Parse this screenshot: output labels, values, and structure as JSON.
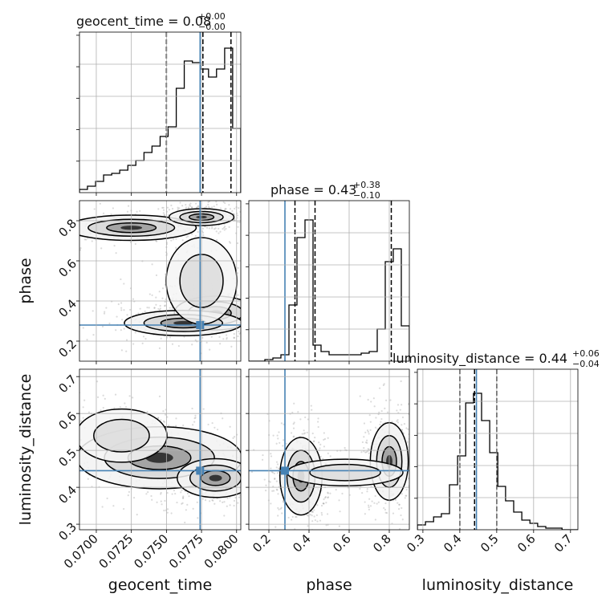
{
  "chart_data": {
    "type": "corner",
    "parameters": [
      "geocent_time",
      "phase",
      "luminosity_distance"
    ],
    "truth": {
      "geocent_time": 0.0774,
      "phase": 0.28,
      "luminosity_distance": 0.445,
      "color": "#4682b4"
    },
    "axes": {
      "geocent_time": {
        "range": [
          0.0688,
          0.0803
        ],
        "ticks": [
          0.07,
          0.0725,
          0.075,
          0.0775,
          0.08
        ],
        "tick_labels": [
          "0.0700",
          "0.0725",
          "0.0750",
          "0.0775",
          "0.0800"
        ]
      },
      "phase": {
        "range": [
          0.1,
          0.9
        ],
        "ticks": [
          0.2,
          0.4,
          0.6,
          0.8
        ],
        "tick_labels": [
          "0.2",
          "0.4",
          "0.6",
          "0.8"
        ]
      },
      "luminosity_distance": {
        "range": [
          0.285,
          0.72
        ],
        "ticks": [
          0.3,
          0.4,
          0.5,
          0.6,
          0.7
        ],
        "tick_labels": [
          "0.3",
          "0.4",
          "0.5",
          "0.6",
          "0.7"
        ]
      }
    },
    "axis_labels": {
      "geocent_time": "geocent_time",
      "phase": "phase",
      "luminosity_distance": "luminosity_distance"
    },
    "titles": {
      "geocent_time": {
        "text": "geocent_time = 0.08",
        "plus": "+0.00",
        "minus": "−0.00"
      },
      "phase": {
        "text": "phase = 0.43",
        "plus": "+0.38",
        "minus": "−0.10"
      },
      "luminosity_distance": {
        "text": "luminosity_distance = 0.44",
        "plus": "+0.06",
        "minus": "−0.04"
      }
    },
    "quantiles": {
      "geocent_time": [
        0.075,
        0.0776,
        0.0796
      ],
      "phase": [
        0.33,
        0.43,
        0.81
      ],
      "luminosity_distance": [
        0.4,
        0.44,
        0.5
      ]
    },
    "histograms": {
      "geocent_time": {
        "edges": [
          0.0688,
          0.06937,
          0.06995,
          0.07052,
          0.0711,
          0.07167,
          0.07225,
          0.07282,
          0.0734,
          0.07397,
          0.07455,
          0.07512,
          0.0757,
          0.07627,
          0.07685,
          0.07742,
          0.078,
          0.07857,
          0.07915,
          0.07972,
          0.0803
        ],
        "counts": [
          0.02,
          0.04,
          0.07,
          0.11,
          0.12,
          0.14,
          0.17,
          0.2,
          0.25,
          0.29,
          0.35,
          0.41,
          0.65,
          0.82,
          0.81,
          0.77,
          0.72,
          0.77,
          0.9,
          0.4
        ]
      },
      "phase": {
        "edges": [
          0.1,
          0.14,
          0.18,
          0.22,
          0.26,
          0.3,
          0.34,
          0.38,
          0.42,
          0.46,
          0.5,
          0.54,
          0.58,
          0.62,
          0.66,
          0.7,
          0.74,
          0.78,
          0.82,
          0.86,
          0.9
        ],
        "counts": [
          0.0,
          0.0,
          0.01,
          0.02,
          0.04,
          0.35,
          0.77,
          0.88,
          0.1,
          0.06,
          0.04,
          0.04,
          0.04,
          0.04,
          0.05,
          0.06,
          0.2,
          0.62,
          0.7,
          0.22
        ]
      },
      "luminosity_distance": {
        "edges": [
          0.285,
          0.307,
          0.329,
          0.35,
          0.372,
          0.394,
          0.416,
          0.437,
          0.459,
          0.481,
          0.503,
          0.524,
          0.546,
          0.568,
          0.59,
          0.611,
          0.633,
          0.655,
          0.677,
          0.698,
          0.72
        ],
        "counts": [
          0.03,
          0.05,
          0.08,
          0.1,
          0.28,
          0.46,
          0.79,
          0.85,
          0.68,
          0.48,
          0.27,
          0.18,
          0.11,
          0.06,
          0.04,
          0.02,
          0.01,
          0.01,
          0.0,
          0.0
        ]
      }
    },
    "densities": {
      "phase_vs_geocent_time": {
        "x": "geocent_time",
        "y": "phase",
        "clusters": [
          {
            "center": [
              0.0725,
              0.765
            ],
            "spread": [
              0.0022,
              0.03
            ],
            "weight": 0.6
          },
          {
            "center": [
              0.0775,
              0.818
            ],
            "spread": [
              0.0011,
              0.02
            ],
            "weight": 0.8
          },
          {
            "center": [
              0.0785,
              0.34
            ],
            "spread": [
              0.0014,
              0.04
            ],
            "weight": 1.0
          },
          {
            "center": [
              0.0762,
              0.29
            ],
            "spread": [
              0.002,
              0.03
            ],
            "weight": 0.5
          },
          {
            "center": [
              0.0775,
              0.5
            ],
            "spread": [
              0.0014,
              0.12
            ],
            "weight": 0.35
          }
        ]
      },
      "luminosity_distance_vs_geocent_time": {
        "x": "geocent_time",
        "y": "luminosity_distance",
        "clusters": [
          {
            "center": [
              0.0745,
              0.48
            ],
            "spread": [
              0.0028,
              0.04
            ],
            "weight": 0.7
          },
          {
            "center": [
              0.0785,
              0.425
            ],
            "spread": [
              0.0013,
              0.025
            ],
            "weight": 1.0
          },
          {
            "center": [
              0.0718,
              0.54
            ],
            "spread": [
              0.0018,
              0.04
            ],
            "weight": 0.35
          }
        ]
      },
      "luminosity_distance_vs_phase": {
        "x": "phase",
        "y": "luminosity_distance",
        "clusters": [
          {
            "center": [
              0.36,
              0.43
            ],
            "spread": [
              0.05,
              0.05
            ],
            "weight": 1.0
          },
          {
            "center": [
              0.8,
              0.47
            ],
            "spread": [
              0.045,
              0.05
            ],
            "weight": 0.9
          },
          {
            "center": [
              0.58,
              0.44
            ],
            "spread": [
              0.16,
              0.02
            ],
            "weight": 0.15
          }
        ]
      }
    },
    "grid": true,
    "colors": {
      "hist": "#000000",
      "truth": "#4682b4",
      "points": "#7f7f7f",
      "grid": "#b0b0b0"
    }
  }
}
